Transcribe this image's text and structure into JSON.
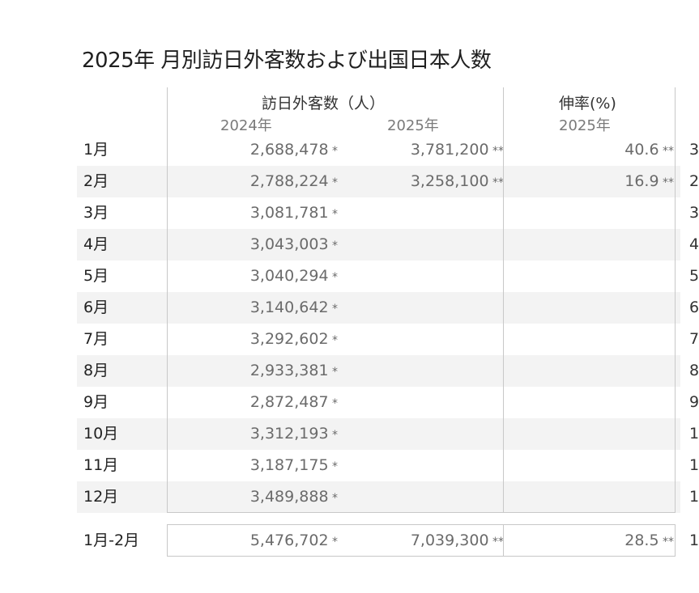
{
  "chart_data": {
    "type": "table",
    "title": "2025年 月別訪日外客数および出国日本人数",
    "columns": {
      "visitors_header": "訪日外客数（人）",
      "rate_header": "伸率(%)",
      "year_2024": "2024年",
      "year_2025": "2025年",
      "rate_year": "2025年"
    },
    "rows": [
      {
        "month": "1月",
        "v2024": "2,688,478",
        "m2024": " *",
        "v2025": "3,781,200",
        "m2025": " **",
        "rate": "40.6",
        "mrate": " **",
        "cut": "3"
      },
      {
        "month": "2月",
        "v2024": "2,788,224",
        "m2024": " *",
        "v2025": "3,258,100",
        "m2025": " **",
        "rate": "16.9",
        "mrate": " **",
        "cut": "2"
      },
      {
        "month": "3月",
        "v2024": "3,081,781",
        "m2024": " *",
        "v2025": "",
        "m2025": "",
        "rate": "",
        "mrate": "",
        "cut": "3"
      },
      {
        "month": "4月",
        "v2024": "3,043,003",
        "m2024": " *",
        "v2025": "",
        "m2025": "",
        "rate": "",
        "mrate": "",
        "cut": "4"
      },
      {
        "month": "5月",
        "v2024": "3,040,294",
        "m2024": " *",
        "v2025": "",
        "m2025": "",
        "rate": "",
        "mrate": "",
        "cut": "5"
      },
      {
        "month": "6月",
        "v2024": "3,140,642",
        "m2024": " *",
        "v2025": "",
        "m2025": "",
        "rate": "",
        "mrate": "",
        "cut": "6"
      },
      {
        "month": "7月",
        "v2024": "3,292,602",
        "m2024": " *",
        "v2025": "",
        "m2025": "",
        "rate": "",
        "mrate": "",
        "cut": "7"
      },
      {
        "month": "8月",
        "v2024": "2,933,381",
        "m2024": " *",
        "v2025": "",
        "m2025": "",
        "rate": "",
        "mrate": "",
        "cut": "8"
      },
      {
        "month": "9月",
        "v2024": "2,872,487",
        "m2024": " *",
        "v2025": "",
        "m2025": "",
        "rate": "",
        "mrate": "",
        "cut": "9"
      },
      {
        "month": "10月",
        "v2024": "3,312,193",
        "m2024": " *",
        "v2025": "",
        "m2025": "",
        "rate": "",
        "mrate": "",
        "cut": "1"
      },
      {
        "month": "11月",
        "v2024": "3,187,175",
        "m2024": " *",
        "v2025": "",
        "m2025": "",
        "rate": "",
        "mrate": "",
        "cut": "1"
      },
      {
        "month": "12月",
        "v2024": "3,489,888",
        "m2024": " *",
        "v2025": "",
        "m2025": "",
        "rate": "",
        "mrate": "",
        "cut": "1"
      }
    ],
    "total": {
      "month": "1月-2月",
      "v2024": "5,476,702",
      "m2024": " *",
      "v2025": "7,039,300",
      "m2025": " **",
      "rate": "28.5",
      "mrate": " **",
      "cut": "1"
    }
  }
}
